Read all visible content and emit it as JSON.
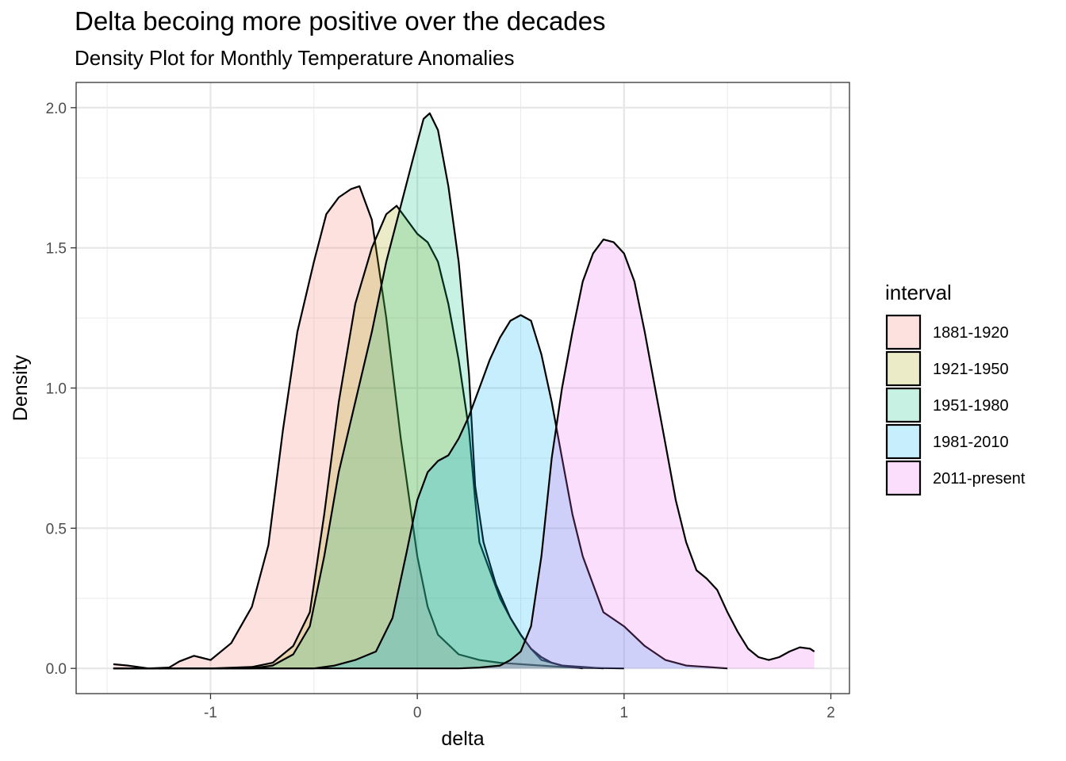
{
  "chart_data": {
    "type": "area",
    "title": "Delta becoing more positive over the decades",
    "subtitle": "Density Plot for Monthly Temperature Anomalies",
    "xlabel": "delta",
    "ylabel": "Density",
    "xlim": [
      -1.65,
      2.09
    ],
    "ylim": [
      -0.09,
      2.09
    ],
    "x_ticks": [
      -1,
      0,
      1,
      2
    ],
    "x_tick_labels": [
      "-1",
      "0",
      "1",
      "2"
    ],
    "y_ticks": [
      0.0,
      0.5,
      1.0,
      1.5,
      2.0
    ],
    "y_tick_labels": [
      "0.0",
      "0.5",
      "1.0",
      "1.5",
      "2.0"
    ],
    "grid": true,
    "legend": {
      "title": "interval",
      "position": "right"
    },
    "series": [
      {
        "name": "1881-1920",
        "color": "#F8766D",
        "points": [
          [
            -1.47,
            0.015
          ],
          [
            -1.4,
            0.01
          ],
          [
            -1.3,
            0.0
          ],
          [
            -1.2,
            0.003
          ],
          [
            -1.15,
            0.025
          ],
          [
            -1.08,
            0.045
          ],
          [
            -1.0,
            0.03
          ],
          [
            -0.9,
            0.09
          ],
          [
            -0.8,
            0.22
          ],
          [
            -0.72,
            0.44
          ],
          [
            -0.65,
            0.85
          ],
          [
            -0.58,
            1.2
          ],
          [
            -0.5,
            1.45
          ],
          [
            -0.44,
            1.62
          ],
          [
            -0.38,
            1.68
          ],
          [
            -0.32,
            1.71
          ],
          [
            -0.28,
            1.72
          ],
          [
            -0.22,
            1.6
          ],
          [
            -0.15,
            1.25
          ],
          [
            -0.08,
            0.82
          ],
          [
            0.0,
            0.4
          ],
          [
            0.05,
            0.22
          ],
          [
            0.1,
            0.12
          ],
          [
            0.2,
            0.05
          ],
          [
            0.3,
            0.03
          ],
          [
            0.4,
            0.02
          ],
          [
            0.5,
            0.015
          ],
          [
            0.6,
            0.01
          ],
          [
            0.7,
            0.005
          ],
          [
            0.8,
            0.002
          ],
          [
            0.9,
            0.001
          ],
          [
            1.0,
            0.0
          ]
        ]
      },
      {
        "name": "1921-1950",
        "color": "#A3A500",
        "points": [
          [
            -1.47,
            0.0
          ],
          [
            -1.0,
            0.0
          ],
          [
            -0.8,
            0.005
          ],
          [
            -0.7,
            0.02
          ],
          [
            -0.6,
            0.08
          ],
          [
            -0.52,
            0.2
          ],
          [
            -0.45,
            0.55
          ],
          [
            -0.38,
            0.95
          ],
          [
            -0.3,
            1.3
          ],
          [
            -0.22,
            1.5
          ],
          [
            -0.15,
            1.62
          ],
          [
            -0.1,
            1.65
          ],
          [
            -0.05,
            1.6
          ],
          [
            0.0,
            1.55
          ],
          [
            0.05,
            1.52
          ],
          [
            0.1,
            1.45
          ],
          [
            0.15,
            1.3
          ],
          [
            0.2,
            1.1
          ],
          [
            0.25,
            0.85
          ],
          [
            0.28,
            0.6
          ],
          [
            0.3,
            0.45
          ],
          [
            0.35,
            0.35
          ],
          [
            0.4,
            0.25
          ],
          [
            0.45,
            0.18
          ],
          [
            0.5,
            0.12
          ],
          [
            0.55,
            0.07
          ],
          [
            0.6,
            0.03
          ],
          [
            0.7,
            0.01
          ],
          [
            0.8,
            0.005
          ],
          [
            0.9,
            0.0
          ]
        ]
      },
      {
        "name": "1951-1980",
        "color": "#00BF7D",
        "points": [
          [
            -1.47,
            0.0
          ],
          [
            -0.8,
            0.0
          ],
          [
            -0.7,
            0.01
          ],
          [
            -0.6,
            0.05
          ],
          [
            -0.52,
            0.15
          ],
          [
            -0.45,
            0.4
          ],
          [
            -0.38,
            0.7
          ],
          [
            -0.3,
            0.95
          ],
          [
            -0.22,
            1.2
          ],
          [
            -0.15,
            1.45
          ],
          [
            -0.08,
            1.65
          ],
          [
            -0.02,
            1.82
          ],
          [
            0.03,
            1.96
          ],
          [
            0.06,
            1.98
          ],
          [
            0.1,
            1.92
          ],
          [
            0.15,
            1.72
          ],
          [
            0.2,
            1.45
          ],
          [
            0.25,
            1.05
          ],
          [
            0.28,
            0.65
          ],
          [
            0.32,
            0.45
          ],
          [
            0.38,
            0.3
          ],
          [
            0.45,
            0.18
          ],
          [
            0.5,
            0.12
          ],
          [
            0.55,
            0.07
          ],
          [
            0.6,
            0.04
          ],
          [
            0.65,
            0.02
          ],
          [
            0.7,
            0.01
          ],
          [
            0.8,
            0.0
          ]
        ]
      },
      {
        "name": "1981-2010",
        "color": "#00B0F6",
        "points": [
          [
            -1.47,
            0.0
          ],
          [
            -0.5,
            0.0
          ],
          [
            -0.4,
            0.01
          ],
          [
            -0.3,
            0.03
          ],
          [
            -0.2,
            0.06
          ],
          [
            -0.12,
            0.18
          ],
          [
            -0.05,
            0.42
          ],
          [
            0.0,
            0.6
          ],
          [
            0.05,
            0.7
          ],
          [
            0.1,
            0.74
          ],
          [
            0.15,
            0.76
          ],
          [
            0.2,
            0.82
          ],
          [
            0.25,
            0.9
          ],
          [
            0.3,
            1.0
          ],
          [
            0.35,
            1.1
          ],
          [
            0.4,
            1.18
          ],
          [
            0.45,
            1.24
          ],
          [
            0.5,
            1.26
          ],
          [
            0.55,
            1.24
          ],
          [
            0.6,
            1.12
          ],
          [
            0.65,
            0.95
          ],
          [
            0.7,
            0.75
          ],
          [
            0.75,
            0.55
          ],
          [
            0.8,
            0.4
          ],
          [
            0.85,
            0.3
          ],
          [
            0.9,
            0.2
          ],
          [
            1.0,
            0.15
          ],
          [
            1.1,
            0.08
          ],
          [
            1.2,
            0.03
          ],
          [
            1.3,
            0.01
          ],
          [
            1.4,
            0.005
          ],
          [
            1.5,
            0.0
          ]
        ]
      },
      {
        "name": "2011-present",
        "color": "#E76BF3",
        "points": [
          [
            -1.47,
            0.0
          ],
          [
            0.2,
            0.0
          ],
          [
            0.3,
            0.003
          ],
          [
            0.4,
            0.01
          ],
          [
            0.45,
            0.03
          ],
          [
            0.5,
            0.06
          ],
          [
            0.55,
            0.15
          ],
          [
            0.6,
            0.4
          ],
          [
            0.65,
            0.75
          ],
          [
            0.7,
            1.0
          ],
          [
            0.75,
            1.2
          ],
          [
            0.8,
            1.38
          ],
          [
            0.85,
            1.48
          ],
          [
            0.9,
            1.53
          ],
          [
            0.95,
            1.52
          ],
          [
            1.0,
            1.48
          ],
          [
            1.05,
            1.38
          ],
          [
            1.1,
            1.2
          ],
          [
            1.15,
            1.0
          ],
          [
            1.2,
            0.8
          ],
          [
            1.25,
            0.6
          ],
          [
            1.3,
            0.45
          ],
          [
            1.35,
            0.35
          ],
          [
            1.4,
            0.32
          ],
          [
            1.45,
            0.28
          ],
          [
            1.5,
            0.2
          ],
          [
            1.55,
            0.13
          ],
          [
            1.6,
            0.07
          ],
          [
            1.65,
            0.04
          ],
          [
            1.7,
            0.03
          ],
          [
            1.75,
            0.04
          ],
          [
            1.8,
            0.06
          ],
          [
            1.85,
            0.075
          ],
          [
            1.9,
            0.07
          ],
          [
            1.92,
            0.06
          ]
        ]
      }
    ]
  }
}
